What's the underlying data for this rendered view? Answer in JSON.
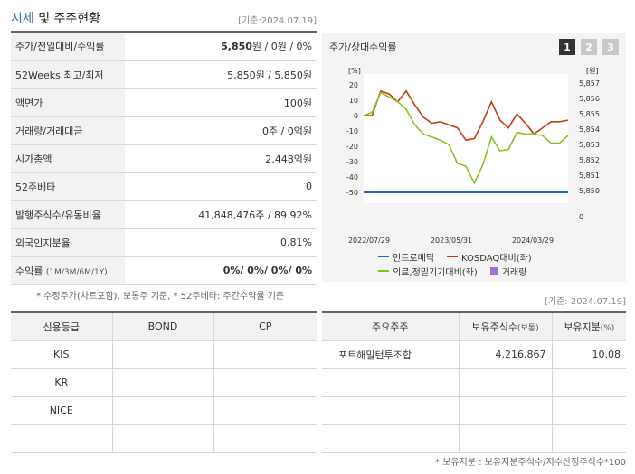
{
  "header": {
    "title_hl": "시세",
    "title_rest": " 및 주주현황",
    "date": "[기준:2024.07.19]"
  },
  "info_rows": [
    {
      "label": "주가/전일대비/수익률",
      "value_bold": "5,850",
      "value_rest": "원 / 0원 / 0%"
    },
    {
      "label": "52Weeks 최고/최저",
      "value": "5,850원 / 5,850원"
    },
    {
      "label": "액면가",
      "value": "100원"
    },
    {
      "label": "거래량/거래대금",
      "value": "0주 / 0억원"
    },
    {
      "label": "시가총액",
      "value": "2,448억원"
    },
    {
      "label": "52주베타",
      "value": "0"
    },
    {
      "label": "발행주식수/유동비율",
      "value": "41,848,476주 / 89.92%"
    },
    {
      "label": "외국인지분율",
      "value": "0.81%"
    },
    {
      "label": "수익률",
      "label_small": "(1M/3M/6M/1Y)",
      "value_bold": "0%/ 0%/ 0%/ 0%"
    }
  ],
  "footnote": "* 수정주가(차트포함), 보통주 기준, * 52주베타: 주간수익률 기준",
  "chart_panel": {
    "title": "주가/상대수익률",
    "tabs": [
      "1",
      "2",
      "3"
    ]
  },
  "chart_data": {
    "type": "line",
    "x_labels": [
      "2022/07/29",
      "2023/05/31",
      "2024/03/29"
    ],
    "left_axis": {
      "unit": "[%]",
      "ticks": [
        "20",
        "10",
        "0",
        "-10",
        "-20",
        "-30",
        "-40",
        "-50"
      ],
      "ylim": [
        -50,
        20
      ]
    },
    "right_axis": {
      "unit": "[원]",
      "ticks": [
        "5,857",
        "5,856",
        "5,855",
        "5,854",
        "5,853",
        "5,852",
        "5,851",
        "5,850",
        "0"
      ]
    },
    "series": [
      {
        "name": "인트로메딕",
        "color": "#2468c8",
        "axis": "right",
        "values": [
          5850,
          5850
        ]
      },
      {
        "name": "KOSDAQ대비(좌)",
        "color": "#c83c14",
        "axis": "left",
        "values": [
          0,
          0,
          16,
          14,
          9,
          16,
          7,
          -1,
          -5,
          -4,
          -6,
          -8,
          -16,
          -15,
          -4,
          9,
          -3,
          -8,
          1,
          -5,
          -12,
          -8,
          -4,
          -4,
          -3
        ]
      },
      {
        "name": "의료,정밀기기대비(좌)",
        "color": "#8cc028",
        "axis": "left",
        "values": [
          0,
          2,
          15,
          12,
          9,
          4,
          -6,
          -12,
          -14,
          -16,
          -19,
          -31,
          -33,
          -44,
          -32,
          -14,
          -23,
          -22,
          -11,
          -12,
          -12,
          -13,
          -18,
          -18,
          -13
        ]
      },
      {
        "name": "거래량",
        "color": "#a070d8",
        "type": "bar",
        "values": []
      }
    ]
  },
  "legend": [
    "인트로메딕",
    "KOSDAQ대비(좌)",
    "의료,정밀기기대비(좌)",
    "거래량"
  ],
  "date2": "[기준: 2024.07.19]",
  "credit_table": {
    "headers": [
      "신용등급",
      "BOND",
      "CP"
    ],
    "rows": [
      [
        "KIS",
        "",
        ""
      ],
      [
        "KR",
        "",
        ""
      ],
      [
        "NICE",
        "",
        ""
      ],
      [
        "",
        "",
        ""
      ]
    ]
  },
  "holder_table": {
    "headers": [
      "주요주주",
      "보유주식수",
      "(보통)",
      "보유지분",
      "(%)"
    ],
    "rows": [
      [
        "포트해밀턴투조합",
        "4,216,867",
        "10.08"
      ],
      [
        "",
        "",
        ""
      ],
      [
        "",
        "",
        ""
      ],
      [
        "",
        "",
        ""
      ]
    ]
  },
  "footnote2": "* 보유지분 : 보유지분주식수/지수산정주식수*100"
}
